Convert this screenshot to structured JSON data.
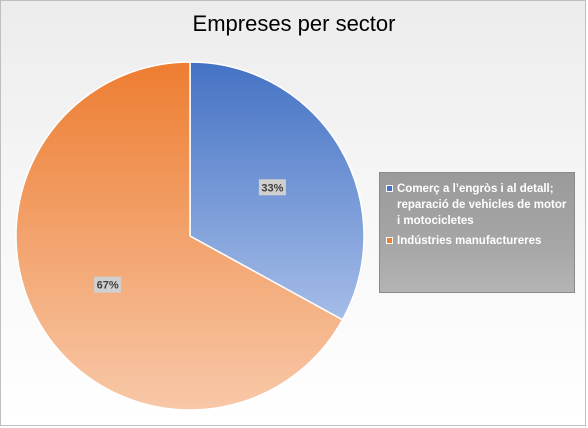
{
  "chart_data": {
    "type": "pie",
    "title": "Empreses per sector",
    "categories": [
      "Comerç a l’engròs i al detall; reparació de vehicles de motor i motocicletes",
      "Indústries manufactureres"
    ],
    "values": [
      33,
      67
    ],
    "value_labels": [
      "33%",
      "67%"
    ],
    "colors": [
      "#4472c4",
      "#ed7d31"
    ],
    "legend_position": "right"
  }
}
